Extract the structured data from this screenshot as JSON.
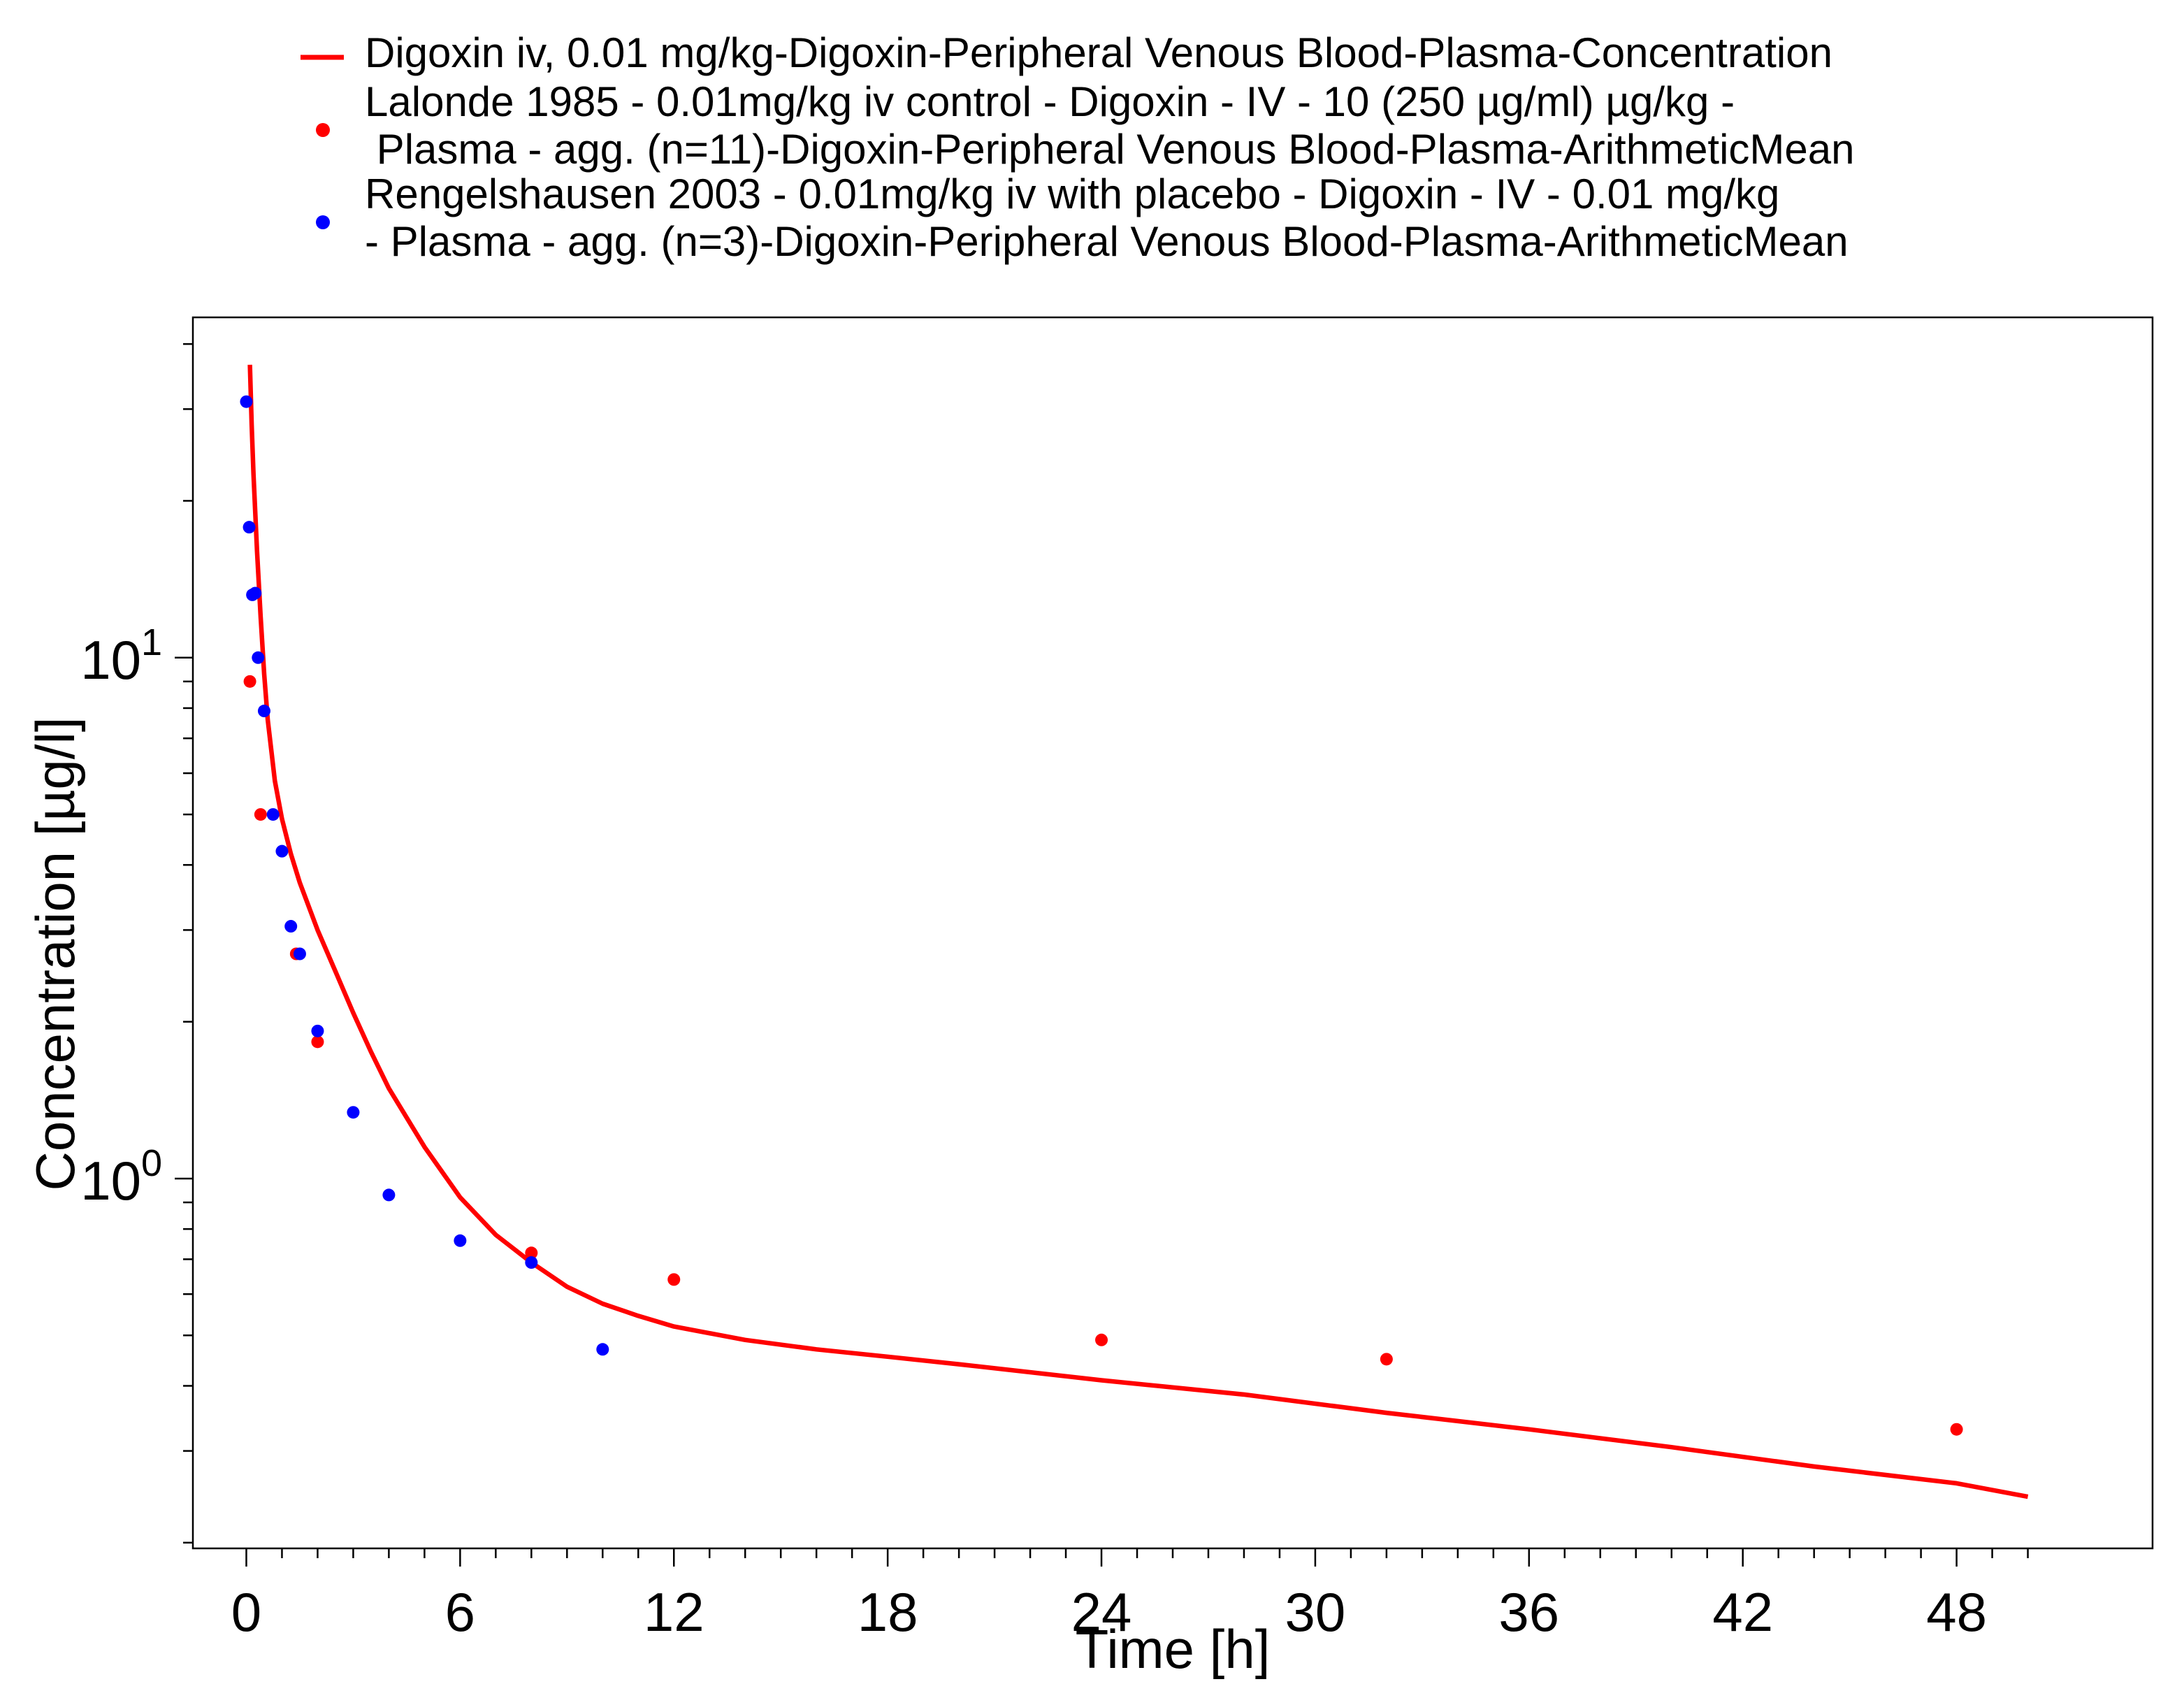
{
  "chart_data": {
    "type": "line",
    "xlabel": "Time [h]",
    "ylabel": "Concentration [µg/l]",
    "xlim": [
      -1.5,
      53.5
    ],
    "ylim": [
      0.195,
      45
    ],
    "yscale": "log",
    "xticks": [
      0,
      6,
      12,
      18,
      24,
      30,
      36,
      42,
      48
    ],
    "yticks": [
      {
        "value": 1,
        "base": "10",
        "exp": "0"
      },
      {
        "value": 10,
        "base": "10",
        "exp": "1"
      }
    ],
    "grid": false,
    "legend_position": "top",
    "series": [
      {
        "name": "Digoxin iv, 0.01 mg/kg-Digoxin-Peripheral Venous Blood-Plasma-Concentration",
        "legend_lines": [
          "Digoxin iv, 0.01 mg/kg-Digoxin-Peripheral Venous Blood-Plasma-Concentration"
        ],
        "kind": "line",
        "color": "#ff0000",
        "x": [
          0.1,
          0.15,
          0.2,
          0.3,
          0.4,
          0.5,
          0.6,
          0.8,
          1.0,
          1.25,
          1.5,
          2.0,
          2.5,
          3.0,
          3.5,
          4.0,
          5.0,
          6.0,
          7.0,
          8.0,
          9.0,
          10.0,
          11.0,
          12.0,
          14.0,
          16.0,
          18.0,
          20.0,
          24.0,
          28.0,
          32.0,
          36.0,
          40.0,
          44.0,
          48.0,
          50.0
        ],
        "y": [
          36.5,
          28.0,
          22.5,
          16.0,
          12.0,
          9.3,
          7.6,
          5.8,
          4.9,
          4.2,
          3.7,
          3.0,
          2.5,
          2.08,
          1.75,
          1.49,
          1.15,
          0.92,
          0.78,
          0.69,
          0.62,
          0.575,
          0.545,
          0.52,
          0.49,
          0.47,
          0.455,
          0.44,
          0.41,
          0.385,
          0.355,
          0.33,
          0.305,
          0.28,
          0.26,
          0.245
        ]
      },
      {
        "name": "Lalonde 1985 - 0.01mg/kg iv control - Digoxin - IV - 10 (250 µg/ml) µg/kg - Plasma - agg. (n=11)-Digoxin-Peripheral Venous Blood-Plasma-ArithmeticMean",
        "legend_lines": [
          "Lalonde 1985 - 0.01mg/kg iv control - Digoxin - IV - 10 (250 µg/ml) µg/kg -",
          " Plasma - agg. (n=11)-Digoxin-Peripheral Venous Blood-Plasma-ArithmeticMean"
        ],
        "kind": "scatter",
        "color": "#ff0000",
        "x": [
          0.1,
          0.4,
          1.4,
          2.0,
          8.0,
          12.0,
          24.0,
          32.0,
          48.0
        ],
        "y": [
          9.0,
          5.0,
          2.7,
          1.83,
          0.72,
          0.64,
          0.49,
          0.45,
          0.33
        ]
      },
      {
        "name": "Rengelshausen 2003 - 0.01mg/kg iv with placebo - Digoxin - IV - 0.01 mg/kg - Plasma - agg. (n=3)-Digoxin-Peripheral Venous Blood-Plasma-ArithmeticMean",
        "legend_lines": [
          "Rengelshausen 2003 - 0.01mg/kg iv with placebo - Digoxin - IV - 0.01 mg/kg",
          "- Plasma - agg. (n=3)-Digoxin-Peripheral Venous Blood-Plasma-ArithmeticMean"
        ],
        "kind": "scatter",
        "color": "#0000ff",
        "x": [
          0.0,
          0.08,
          0.17,
          0.25,
          0.33,
          0.5,
          0.75,
          1.0,
          1.25,
          1.5,
          2.0,
          3.0,
          4.0,
          6.0,
          8.0,
          10.0
        ],
        "y": [
          31.0,
          17.8,
          13.2,
          13.3,
          10.0,
          7.9,
          5.0,
          4.25,
          3.05,
          2.7,
          1.92,
          1.34,
          0.93,
          0.76,
          0.69,
          0.47
        ]
      }
    ]
  }
}
